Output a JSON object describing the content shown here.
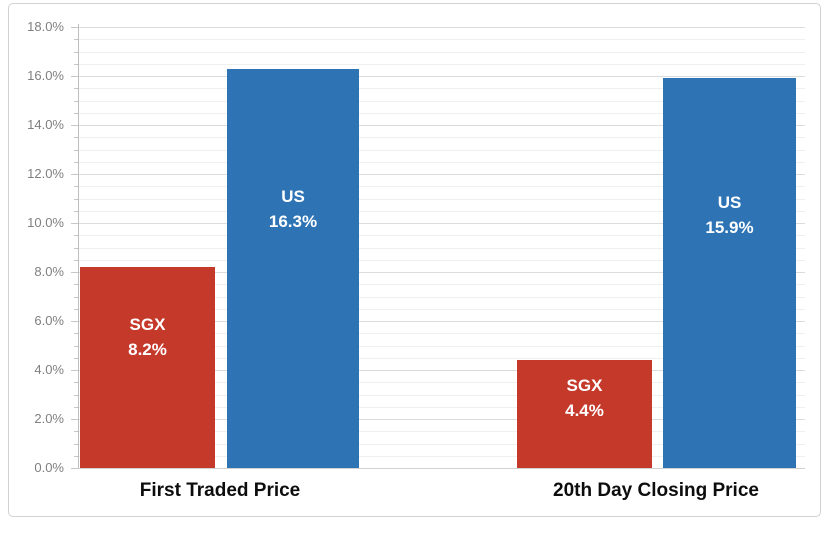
{
  "chart_data": {
    "type": "bar",
    "title": "",
    "categories": [
      "First Traded Price",
      "20th Day Closing Price"
    ],
    "series": [
      {
        "name": "SGX",
        "color": "#c5392b",
        "values": [
          8.2,
          4.4
        ]
      },
      {
        "name": "US",
        "color": "#2e74b5",
        "values": [
          16.3,
          15.9
        ]
      }
    ],
    "bars": [
      {
        "category": "First Traded Price",
        "series": "SGX",
        "value": 8.2,
        "label_lines": [
          "SGX",
          "8.2%"
        ]
      },
      {
        "category": "First Traded Price",
        "series": "US",
        "value": 16.3,
        "label_lines": [
          "US",
          "16.3%"
        ]
      },
      {
        "category": "20th Day Closing Price",
        "series": "SGX",
        "value": 4.4,
        "label_lines": [
          "SGX",
          "4.4%"
        ]
      },
      {
        "category": "20th Day Closing Price",
        "series": "US",
        "value": 15.9,
        "label_lines": [
          "US",
          "15.9%"
        ]
      }
    ],
    "y_axis": {
      "min": 0,
      "max": 18,
      "major_step": 2,
      "minor_step": 0.5,
      "tick_labels": [
        "0.0%",
        "2.0%",
        "4.0%",
        "6.0%",
        "8.0%",
        "10.0%",
        "12.0%",
        "14.0%",
        "16.0%",
        "18.0%"
      ]
    },
    "xlabel": "",
    "ylabel": "",
    "grid": {
      "major": true,
      "minor": true
    },
    "legend": "none",
    "colors": {
      "sgx": "#c5392b",
      "us": "#2e74b5",
      "gridline_major": "#dcdcdc",
      "gridline_minor": "#efefef",
      "axis_line": "#bdbdbd",
      "tick_text": "#7f7f7f",
      "category_text": "#0d0d0d",
      "bar_label_text": "#ffffff",
      "background": "#ffffff"
    }
  }
}
